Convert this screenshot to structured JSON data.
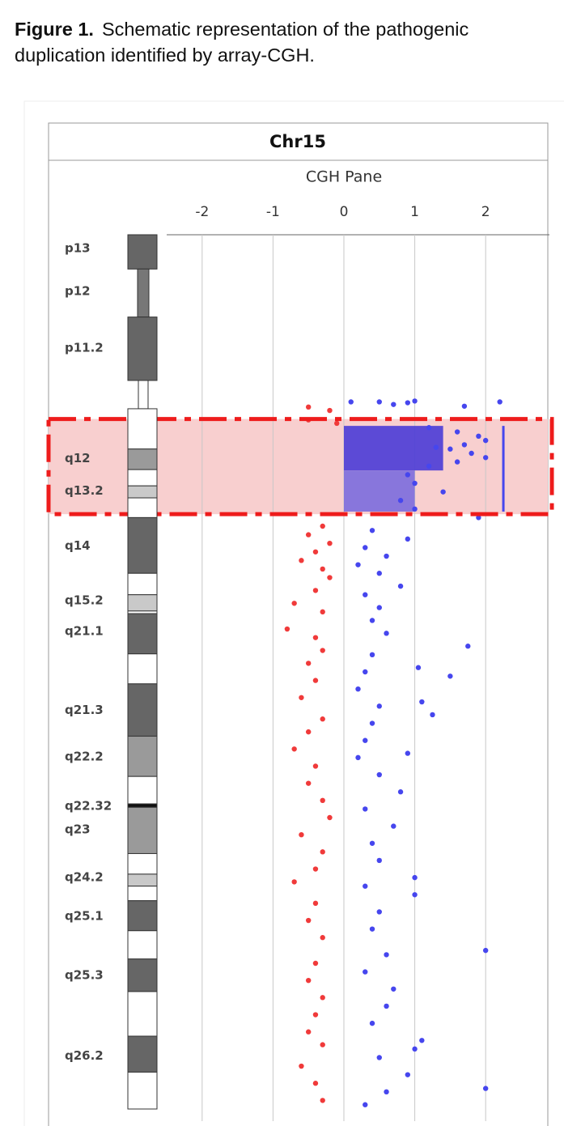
{
  "caption": {
    "label": "Figure 1.",
    "text": "Schematic representation of the pathogenic duplication identified by array-CGH."
  },
  "chart_data": {
    "type": "cgh",
    "title": "Chr15",
    "subtitle": "CGH Pane",
    "xlim": [
      -2.5,
      2.9
    ],
    "xticks": [
      -2,
      -1,
      0,
      1,
      2
    ],
    "grid": true,
    "ylim": [
      0,
      102
    ],
    "positive_color": "#4646ee",
    "negative_color": "#f03a3a",
    "bands": [
      {
        "start": 0,
        "end": 4.0,
        "stain": "gpos75"
      },
      {
        "start": 4.0,
        "end": 9.6,
        "stain": "stalk"
      },
      {
        "start": 9.6,
        "end": 17.0,
        "stain": "gpos75"
      },
      {
        "start": 17.0,
        "end": 20.3,
        "stain": "acen"
      },
      {
        "start": 20.3,
        "end": 25.0,
        "stain": "gneg"
      },
      {
        "start": 25.0,
        "end": 27.4,
        "stain": "gpos50"
      },
      {
        "start": 27.4,
        "end": 29.3,
        "stain": "gneg"
      },
      {
        "start": 29.3,
        "end": 30.7,
        "stain": "gpos25"
      },
      {
        "start": 30.7,
        "end": 33.0,
        "stain": "gneg"
      },
      {
        "start": 33.0,
        "end": 39.5,
        "stain": "gpos75"
      },
      {
        "start": 39.5,
        "end": 42.0,
        "stain": "gneg"
      },
      {
        "start": 42.0,
        "end": 43.9,
        "stain": "gpos25"
      },
      {
        "start": 43.9,
        "end": 44.2,
        "stain": "gneg"
      },
      {
        "start": 44.2,
        "end": 48.9,
        "stain": "gpos75"
      },
      {
        "start": 48.9,
        "end": 52.4,
        "stain": "gneg"
      },
      {
        "start": 52.4,
        "end": 58.5,
        "stain": "gpos75"
      },
      {
        "start": 58.5,
        "end": 63.2,
        "stain": "gpos50"
      },
      {
        "start": 63.2,
        "end": 66.4,
        "stain": "gneg"
      },
      {
        "start": 66.4,
        "end": 66.8,
        "stain": "gpos100"
      },
      {
        "start": 66.8,
        "end": 72.2,
        "stain": "gpos50"
      },
      {
        "start": 72.2,
        "end": 74.6,
        "stain": "gneg"
      },
      {
        "start": 74.6,
        "end": 76.0,
        "stain": "gpos25"
      },
      {
        "start": 76.0,
        "end": 77.7,
        "stain": "gneg"
      },
      {
        "start": 77.7,
        "end": 81.2,
        "stain": "gpos75"
      },
      {
        "start": 81.2,
        "end": 84.5,
        "stain": "gneg"
      },
      {
        "start": 84.5,
        "end": 88.3,
        "stain": "gpos75"
      },
      {
        "start": 88.3,
        "end": 93.5,
        "stain": "gneg"
      },
      {
        "start": 93.5,
        "end": 97.7,
        "stain": "gpos75"
      },
      {
        "start": 97.7,
        "end": 102,
        "stain": "gneg"
      }
    ],
    "band_labels": [
      {
        "name": "p13",
        "position": 1.6
      },
      {
        "name": "p12",
        "position": 6.6
      },
      {
        "name": "p11.2",
        "position": 13.2
      },
      {
        "name": "q12",
        "position": 26.1
      },
      {
        "name": "q13.2",
        "position": 29.9
      },
      {
        "name": "q14",
        "position": 36.3
      },
      {
        "name": "q15.2",
        "position": 42.7
      },
      {
        "name": "q21.1",
        "position": 46.3
      },
      {
        "name": "q21.3",
        "position": 55.5
      },
      {
        "name": "q22.2",
        "position": 60.9
      },
      {
        "name": "q22.32",
        "position": 66.7
      },
      {
        "name": "q23",
        "position": 69.4
      },
      {
        "name": "q24.2",
        "position": 75.0
      },
      {
        "name": "q25.1",
        "position": 79.5
      },
      {
        "name": "q25.3",
        "position": 86.4
      },
      {
        "name": "q26.2",
        "position": 95.8
      }
    ],
    "highlight": {
      "start": 21.5,
      "end": 32.6,
      "color": "#f8cfcf",
      "border": "#ee1c1c"
    },
    "segments": [
      {
        "start": 22.3,
        "end": 27.5,
        "value": 1.4,
        "color": "#4a3bd6"
      },
      {
        "start": 27.5,
        "end": 32.3,
        "value": 1.0,
        "color": "#7b6bdd"
      }
    ],
    "aberration_call": {
      "start": 22.3,
      "end": 32.3,
      "value": 2.25,
      "color": "#4646ee"
    },
    "probes": {
      "positions": [
        19.5,
        19.5,
        19.6,
        19.4,
        19.8,
        20.0,
        20.1,
        20.5,
        19.5,
        21.6,
        22.0,
        22.5,
        23,
        23.5,
        24,
        24.5,
        25,
        25.5,
        26,
        24.8,
        26.5,
        27,
        28,
        29,
        30,
        31,
        32,
        33,
        34,
        34.5,
        35,
        35.5,
        36,
        36.5,
        37,
        37.5,
        38,
        38.5,
        39,
        39.5,
        40,
        41,
        41.5,
        42,
        43,
        43.5,
        44,
        45,
        46,
        46.5,
        47,
        48,
        48.5,
        49,
        50,
        50.5,
        51,
        51.5,
        52,
        53,
        54,
        54.5,
        55,
        56,
        56.5,
        57,
        58,
        59,
        60,
        60.5,
        61,
        62,
        63,
        64,
        65,
        66,
        67,
        68,
        69,
        70,
        71,
        72,
        73,
        74,
        75,
        75.5,
        76,
        77,
        78,
        79,
        80,
        81,
        82,
        83.5,
        84,
        85,
        86,
        87,
        88,
        89,
        90,
        91,
        92,
        93,
        94,
        94.5,
        95,
        96,
        97,
        98,
        99,
        99.6,
        100,
        101,
        101.5
      ],
      "ratios": [
        0.1,
        0.5,
        0.9,
        1.0,
        0.7,
        1.7,
        -0.5,
        -0.2,
        2.2,
        -0.5,
        -0.1,
        1.2,
        1.6,
        1.9,
        2.0,
        1.7,
        1.5,
        1.8,
        2.0,
        1.3,
        1.6,
        1.2,
        0.9,
        1.0,
        1.4,
        0.8,
        1.0,
        1.9,
        -0.3,
        0.4,
        -0.5,
        0.9,
        -0.2,
        0.3,
        -0.4,
        0.6,
        -0.6,
        0.2,
        -0.3,
        0.5,
        -0.2,
        0.8,
        -0.4,
        0.3,
        -0.7,
        0.5,
        -0.3,
        0.4,
        -0.8,
        0.6,
        -0.4,
        1.75,
        -0.3,
        0.4,
        -0.5,
        1.05,
        0.3,
        1.5,
        -0.4,
        0.2,
        -0.6,
        1.1,
        0.5,
        1.25,
        -0.3,
        0.4,
        -0.5,
        0.3,
        -0.7,
        0.9,
        0.2,
        -0.4,
        0.5,
        -0.5,
        0.8,
        -0.3,
        0.3,
        -0.2,
        0.7,
        -0.6,
        0.4,
        -0.3,
        0.5,
        -0.4,
        1.0,
        -0.7,
        0.3,
        1.0,
        -0.4,
        0.5,
        -0.5,
        0.4,
        -0.3,
        2.0,
        0.6,
        -0.4,
        0.3,
        -0.5,
        0.7,
        -0.3,
        0.6,
        -0.4,
        0.4,
        -0.5,
        1.1,
        -0.3,
        1.0,
        0.5,
        -0.6,
        0.9,
        -0.4,
        2.0,
        0.6,
        -0.3,
        0.3
      ]
    }
  }
}
